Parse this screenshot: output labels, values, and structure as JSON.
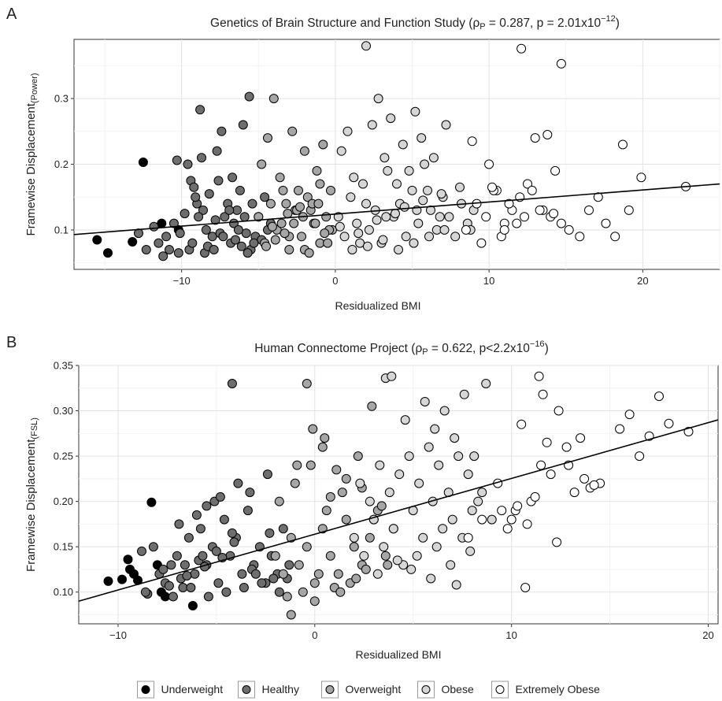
{
  "panels": [
    {
      "letter": "A",
      "title_main": "Genetics of Brain Structure and Function Study (",
      "title_rho": "ρ",
      "title_rho_sub": "P",
      "title_mid": " = 0.287, p = 2.01x10",
      "title_exp": "−12",
      "title_end": ")",
      "ylabel_main": "Framewise Displacement",
      "ylabel_sub": "(Power)",
      "xlabel": "Residualized BMI"
    },
    {
      "letter": "B",
      "title_main": "Human Connectome Project (",
      "title_rho": "ρ",
      "title_rho_sub": "P",
      "title_mid": " = 0.622, p<2.2x10",
      "title_exp": "−16",
      "title_end": ")",
      "ylabel_main": "Framewise Displacement",
      "ylabel_sub": "(FSL)",
      "xlabel": "Residualized BMI"
    }
  ],
  "legend": {
    "items": [
      {
        "label": "Underweight",
        "color": "#000000"
      },
      {
        "label": "Healthy",
        "color": "#6e6e6e"
      },
      {
        "label": "Overweight",
        "color": "#a6a6a6"
      },
      {
        "label": "Obese",
        "color": "#d6d6d6"
      },
      {
        "label": "Extremely Obese",
        "color": "#ffffff"
      }
    ]
  },
  "chart_data": [
    {
      "type": "scatter",
      "xlabel": "Residualized BMI",
      "ylabel": "Framewise Displacement(Power)",
      "xlim": [
        -17,
        25
      ],
      "ylim": [
        0.04,
        0.39
      ],
      "xticks": [
        -10,
        0,
        10,
        20
      ],
      "yticks": [
        0.1,
        0.2,
        0.3
      ],
      "xtick_labels": [
        "−10",
        "0",
        "10",
        "20"
      ],
      "ytick_labels": [
        "0.1",
        "0.2",
        "0.3"
      ],
      "grid": true,
      "regression_line": {
        "x": [
          -17,
          25
        ],
        "y": [
          0.093,
          0.17
        ]
      },
      "series": [
        {
          "name": "Underweight",
          "color": "#000000",
          "x": [
            -15.5,
            -14.8,
            -13.2,
            -12.5,
            -11.3,
            -10.2
          ],
          "y": [
            0.085,
            0.065,
            0.082,
            0.203,
            0.11,
            0.1
          ]
        },
        {
          "name": "Healthy",
          "color": "#6e6e6e",
          "x": [
            -12.8,
            -12.3,
            -11.8,
            -11.5,
            -11.0,
            -10.8,
            -10.5,
            -10.3,
            -10.1,
            -9.8,
            -9.6,
            -9.4,
            -9.2,
            -9.0,
            -8.8,
            -8.6,
            -8.4,
            -8.2,
            -8.0,
            -7.8,
            -7.6,
            -7.4,
            -7.2,
            -7.0,
            -6.8,
            -6.6,
            -6.4,
            -6.2,
            -6.0,
            -5.8,
            -5.6,
            -5.4,
            -5.2,
            -5.0,
            -4.8,
            -4.6,
            -4.4,
            -4.2,
            -9.5,
            -8.5,
            -7.5,
            -6.5,
            -5.5,
            -10.2,
            -9.3,
            -8.3,
            -7.3,
            -6.3,
            -5.3,
            -8.7,
            -7.7,
            -6.7,
            -9.1,
            -8.9,
            -6.9,
            -5.9,
            -11.2,
            -7.9,
            -6.1,
            -5.7
          ],
          "y": [
            0.095,
            0.07,
            0.105,
            0.08,
            0.09,
            0.07,
            0.11,
            0.206,
            0.095,
            0.125,
            0.2,
            0.175,
            0.165,
            0.14,
            0.283,
            0.13,
            0.1,
            0.155,
            0.09,
            0.115,
            0.175,
            0.25,
            0.12,
            0.14,
            0.08,
            0.11,
            0.13,
            0.16,
            0.26,
            0.095,
            0.303,
            0.14,
            0.09,
            0.12,
            0.085,
            0.15,
            0.1,
            0.11,
            0.07,
            0.065,
            0.095,
            0.085,
            0.07,
            0.065,
            0.08,
            0.075,
            0.09,
            0.1,
            0.08,
            0.21,
            0.22,
            0.18,
            0.15,
            0.12,
            0.13,
            0.12,
            0.06,
            0.07,
            0.075,
            0.065
          ]
        },
        {
          "name": "Overweight",
          "color": "#a6a6a6",
          "x": [
            -5.0,
            -4.6,
            -4.2,
            -3.8,
            -3.4,
            -3.0,
            -2.6,
            -2.2,
            -1.8,
            -1.4,
            -1.0,
            -0.6,
            -0.2,
            -4.8,
            -4.4,
            -4.0,
            -3.6,
            -3.2,
            -2.8,
            -2.4,
            -2.0,
            -1.6,
            -1.2,
            -0.8,
            -0.4,
            -3.5,
            -3.0,
            -2.5,
            -2.0,
            -1.5,
            -1.0,
            -0.5,
            -4.5,
            -3.9,
            -3.3,
            -2.7,
            -2.1,
            -1.7,
            -1.1,
            -0.3,
            -4.1,
            -3.1,
            -2.3,
            -1.3,
            -0.7
          ],
          "y": [
            0.12,
            0.08,
            0.14,
            0.1,
            0.16,
            0.07,
            0.13,
            0.09,
            0.15,
            0.11,
            0.08,
            0.12,
            0.1,
            0.2,
            0.24,
            0.3,
            0.18,
            0.14,
            0.25,
            0.16,
            0.22,
            0.13,
            0.19,
            0.23,
            0.1,
            0.11,
            0.09,
            0.13,
            0.07,
            0.14,
            0.17,
            0.08,
            0.075,
            0.085,
            0.095,
            0.11,
            0.12,
            0.065,
            0.14,
            0.16,
            0.105,
            0.125,
            0.135,
            0.11,
            0.095
          ]
        },
        {
          "name": "Obese",
          "color": "#d6d6d6",
          "x": [
            0.2,
            0.6,
            1.0,
            1.4,
            1.8,
            2.2,
            2.6,
            3.0,
            3.4,
            3.8,
            4.2,
            4.6,
            5.0,
            5.4,
            5.8,
            6.2,
            6.6,
            7.0,
            7.4,
            7.8,
            8.2,
            8.6,
            9.0,
            0.4,
            0.8,
            1.2,
            1.6,
            2.0,
            2.4,
            2.8,
            3.2,
            3.6,
            4.0,
            4.4,
            4.8,
            5.2,
            5.6,
            6.0,
            6.4,
            6.8,
            7.2,
            1.1,
            2.1,
            3.1,
            4.1,
            5.1,
            6.1,
            7.1,
            2.0,
            3.3,
            5.3,
            8.8,
            0.3,
            1.5,
            2.7,
            3.9,
            4.5,
            5.7,
            6.9,
            8.1
          ],
          "y": [
            0.12,
            0.09,
            0.15,
            0.11,
            0.17,
            0.1,
            0.13,
            0.08,
            0.19,
            0.12,
            0.14,
            0.09,
            0.16,
            0.11,
            0.2,
            0.13,
            0.1,
            0.15,
            0.12,
            0.09,
            0.14,
            0.11,
            0.13,
            0.22,
            0.25,
            0.18,
            0.08,
            0.38,
            0.26,
            0.3,
            0.21,
            0.27,
            0.17,
            0.23,
            0.19,
            0.28,
            0.24,
            0.16,
            0.21,
            0.12,
            0.26,
            0.07,
            0.075,
            0.085,
            0.07,
            0.08,
            0.09,
            0.1,
            0.14,
            0.12,
            0.13,
            0.1,
            0.105,
            0.095,
            0.115,
            0.125,
            0.135,
            0.145,
            0.155,
            0.165
          ]
        },
        {
          "name": "Extremely Obese",
          "color": "#ffffff",
          "x": [
            8.5,
            9.2,
            10.0,
            10.5,
            11.0,
            11.5,
            12.0,
            12.5,
            13.0,
            13.5,
            14.0,
            14.3,
            14.7,
            15.2,
            15.9,
            16.5,
            17.1,
            17.6,
            18.2,
            18.7,
            19.1,
            19.9,
            22.8,
            12.1,
            14.7,
            9.8,
            10.3,
            10.8,
            11.3,
            11.8,
            12.8,
            13.3,
            13.8,
            14.2,
            9.5,
            10.2,
            11.0,
            12.3,
            8.9
          ],
          "y": [
            0.1,
            0.14,
            0.2,
            0.16,
            0.11,
            0.13,
            0.15,
            0.17,
            0.24,
            0.13,
            0.12,
            0.19,
            0.11,
            0.1,
            0.09,
            0.13,
            0.15,
            0.11,
            0.09,
            0.23,
            0.13,
            0.18,
            0.166,
            0.376,
            0.353,
            0.12,
            0.16,
            0.09,
            0.14,
            0.11,
            0.16,
            0.13,
            0.245,
            0.125,
            0.08,
            0.165,
            0.1,
            0.12,
            0.235
          ]
        }
      ]
    },
    {
      "type": "scatter",
      "xlabel": "Residualized BMI",
      "ylabel": "Framewise Displacement(FSL)",
      "xlim": [
        -12,
        20.5
      ],
      "ylim": [
        0.065,
        0.35
      ],
      "xticks": [
        -10,
        0,
        10,
        20
      ],
      "yticks": [
        0.1,
        0.15,
        0.2,
        0.25,
        0.3,
        0.35
      ],
      "xtick_labels": [
        "−10",
        "0",
        "10",
        "20"
      ],
      "ytick_labels": [
        "0.10",
        "0.15",
        "0.20",
        "0.25",
        "0.30",
        "0.35"
      ],
      "grid": true,
      "regression_line": {
        "x": [
          -12,
          20.5
        ],
        "y": [
          0.09,
          0.29
        ]
      },
      "series": [
        {
          "name": "Underweight",
          "color": "#000000",
          "x": [
            -10.5,
            -9.8,
            -9.5,
            -9.2,
            -9.0,
            -8.3,
            -8.0,
            -7.6,
            -7.8,
            -6.2,
            -9.4
          ],
          "y": [
            0.112,
            0.114,
            0.136,
            0.12,
            0.113,
            0.199,
            0.13,
            0.095,
            0.1,
            0.085,
            0.125
          ]
        },
        {
          "name": "Healthy",
          "color": "#6e6e6e",
          "x": [
            -8.8,
            -8.5,
            -8.2,
            -7.9,
            -7.6,
            -7.3,
            -7.0,
            -6.7,
            -6.4,
            -6.1,
            -5.8,
            -5.5,
            -5.2,
            -4.9,
            -4.6,
            -4.3,
            -4.0,
            -3.7,
            -3.4,
            -3.1,
            -2.8,
            -2.5,
            -2.2,
            -1.9,
            -1.6,
            -1.3,
            -8.6,
            -7.7,
            -6.8,
            -5.9,
            -5.0,
            -4.1,
            -3.2,
            -2.3,
            -1.4,
            -7.2,
            -6.3,
            -5.4,
            -4.5,
            -3.6,
            -2.7,
            -1.8,
            -6.9,
            -6.0,
            -5.1,
            -4.2,
            -3.3,
            -2.4,
            -4.2,
            -5.5,
            -4.8,
            -3.9,
            -6.6,
            -5.7,
            -3.0,
            -2.1,
            -7.4,
            -6.5,
            -5.6,
            -4.7
          ],
          "y": [
            0.145,
            0.098,
            0.15,
            0.12,
            0.11,
            0.13,
            0.14,
            0.105,
            0.16,
            0.12,
            0.17,
            0.13,
            0.15,
            0.11,
            0.18,
            0.14,
            0.16,
            0.12,
            0.19,
            0.13,
            0.15,
            0.11,
            0.14,
            0.12,
            0.17,
            0.13,
            0.1,
            0.125,
            0.115,
            0.135,
            0.145,
            0.155,
            0.125,
            0.165,
            0.115,
            0.095,
            0.105,
            0.095,
            0.1,
            0.105,
            0.11,
            0.1,
            0.175,
            0.185,
            0.2,
            0.165,
            0.21,
            0.23,
            0.33,
            0.195,
            0.205,
            0.22,
            0.13,
            0.14,
            0.12,
            0.115,
            0.107,
            0.118,
            0.128,
            0.138
          ]
        },
        {
          "name": "Overweight",
          "color": "#a6a6a6",
          "x": [
            -2.0,
            -1.6,
            -1.2,
            -0.8,
            -0.4,
            0.0,
            0.4,
            0.8,
            1.2,
            1.6,
            2.0,
            2.4,
            2.8,
            3.2,
            3.6,
            4.0,
            -1.8,
            -1.0,
            -0.2,
            0.6,
            1.4,
            2.2,
            3.0,
            -1.4,
            -0.6,
            0.2,
            1.0,
            1.8,
            2.6,
            -0.1,
            2.9,
            0.4,
            1.1,
            -0.4,
            0.8,
            1.6,
            2.4,
            3.4,
            -1.2,
            0.0,
            1.3,
            2.1,
            3.7,
            0.5,
            -0.9
          ],
          "y": [
            0.14,
            0.12,
            0.16,
            0.13,
            0.15,
            0.11,
            0.17,
            0.14,
            0.12,
            0.18,
            0.15,
            0.13,
            0.16,
            0.19,
            0.14,
            0.17,
            0.2,
            0.22,
            0.24,
            0.19,
            0.21,
            0.25,
            0.18,
            0.095,
            0.1,
            0.12,
            0.105,
            0.11,
            0.125,
            0.28,
            0.305,
            0.26,
            0.235,
            0.33,
            0.205,
            0.225,
            0.215,
            0.195,
            0.075,
            0.09,
            0.1,
            0.115,
            0.13,
            0.27,
            0.24
          ]
        },
        {
          "name": "Obese",
          "color": "#d6d6d6",
          "x": [
            2.0,
            2.5,
            3.0,
            3.5,
            4.0,
            4.5,
            5.0,
            5.5,
            6.0,
            6.5,
            7.0,
            7.5,
            8.0,
            8.5,
            9.0,
            2.3,
            2.8,
            3.3,
            3.8,
            4.3,
            4.8,
            5.3,
            5.8,
            6.3,
            6.8,
            7.3,
            7.8,
            8.3,
            3.6,
            3.9,
            4.6,
            5.6,
            6.1,
            6.6,
            7.1,
            7.6,
            8.1,
            8.7,
            4.9,
            5.9,
            6.9,
            7.9,
            3.2,
            4.2,
            5.2,
            6.2,
            7.2
          ],
          "y": [
            0.16,
            0.14,
            0.18,
            0.15,
            0.17,
            0.13,
            0.19,
            0.16,
            0.2,
            0.17,
            0.18,
            0.16,
            0.19,
            0.21,
            0.18,
            0.22,
            0.2,
            0.24,
            0.21,
            0.23,
            0.25,
            0.22,
            0.26,
            0.24,
            0.21,
            0.25,
            0.23,
            0.2,
            0.336,
            0.338,
            0.29,
            0.31,
            0.28,
            0.3,
            0.27,
            0.318,
            0.25,
            0.33,
            0.125,
            0.115,
            0.13,
            0.145,
            0.12,
            0.135,
            0.14,
            0.15,
            0.108
          ]
        },
        {
          "name": "Extremely Obese",
          "color": "#ffffff",
          "x": [
            7.8,
            8.5,
            9.3,
            10.2,
            10.5,
            11.0,
            11.5,
            12.0,
            12.3,
            12.8,
            13.2,
            13.5,
            14.0,
            14.5,
            15.5,
            16.0,
            16.5,
            17.0,
            17.5,
            18.0,
            19.0,
            11.4,
            11.6,
            10.7,
            12.4,
            9.8,
            10.8,
            11.8,
            12.9,
            13.7,
            14.2,
            9.5,
            10.3,
            11.2,
            10.0
          ],
          "y": [
            0.16,
            0.18,
            0.22,
            0.19,
            0.285,
            0.2,
            0.24,
            0.23,
            0.155,
            0.26,
            0.21,
            0.27,
            0.215,
            0.22,
            0.28,
            0.296,
            0.25,
            0.272,
            0.316,
            0.286,
            0.277,
            0.338,
            0.318,
            0.105,
            0.3,
            0.17,
            0.175,
            0.265,
            0.24,
            0.225,
            0.218,
            0.19,
            0.195,
            0.205,
            0.18
          ]
        }
      ]
    }
  ]
}
